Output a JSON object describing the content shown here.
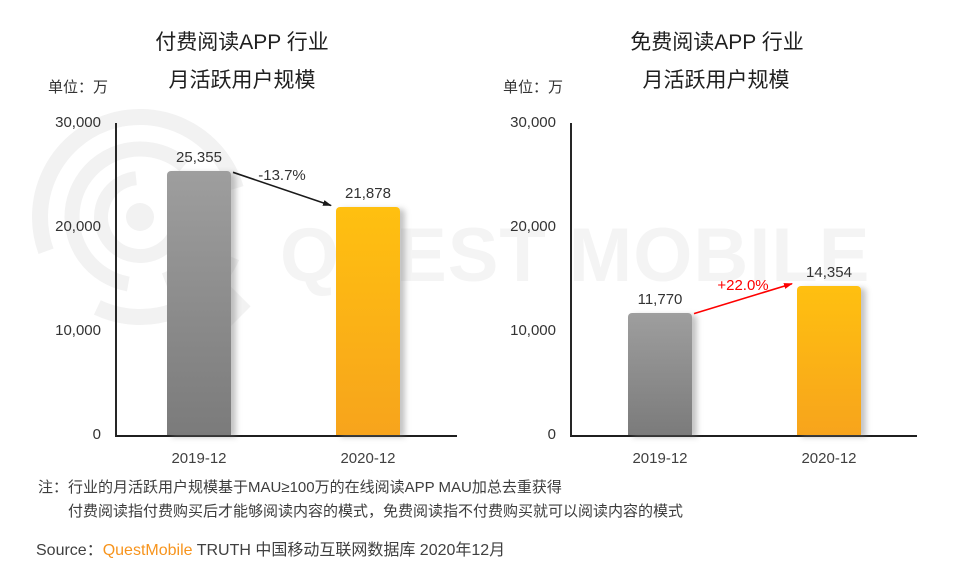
{
  "watermark": {
    "brand_text": "QUEST MOBILE",
    "color": "#f4f4f4"
  },
  "chart_data": [
    {
      "type": "bar",
      "title": "付费阅读APP 行业 月活跃用户规模",
      "title_line1": "付费阅读APP 行业",
      "title_line2": "月活跃用户规模",
      "unit_label": "单位：万",
      "categories": [
        "2019-12",
        "2020-12"
      ],
      "values": [
        25355,
        21878
      ],
      "value_labels": [
        "25,355",
        "21,878"
      ],
      "bar_gradients": [
        [
          "#9e9e9e",
          "#7b7b7b"
        ],
        [
          "#ffc010",
          "#f7a41c"
        ]
      ],
      "change": {
        "label": "-13.7%",
        "color": "#333333",
        "arrow_color": "#1a1a1a"
      },
      "ylim": [
        0,
        30000
      ],
      "yticks": [
        0,
        10000,
        20000,
        30000
      ],
      "ytick_labels": [
        "0",
        "10,000",
        "20,000",
        "30,000"
      ],
      "grid": false,
      "legend": null
    },
    {
      "type": "bar",
      "title": "免费阅读APP 行业 月活跃用户规模",
      "title_line1": "免费阅读APP 行业",
      "title_line2": "月活跃用户规模",
      "unit_label": "单位：万",
      "categories": [
        "2019-12",
        "2020-12"
      ],
      "values": [
        11770,
        14354
      ],
      "value_labels": [
        "11,770",
        "14,354"
      ],
      "bar_gradients": [
        [
          "#9e9e9e",
          "#7b7b7b"
        ],
        [
          "#ffc010",
          "#f7a41c"
        ]
      ],
      "change": {
        "label": "+22.0%",
        "color": "#fe0000",
        "arrow_color": "#fe0000"
      },
      "ylim": [
        0,
        30000
      ],
      "yticks": [
        0,
        10000,
        20000,
        30000
      ],
      "ytick_labels": [
        "0",
        "10,000",
        "20,000",
        "30,000"
      ],
      "grid": false,
      "legend": null
    }
  ],
  "notes": {
    "line1": "注：行业的月活跃用户规模基于MAU≥100万的在线阅读APP MAU加总去重获得",
    "line2": "付费阅读指付费购买后才能够阅读内容的模式，免费阅读指不付费购买就可以阅读内容的模式"
  },
  "source": {
    "prefix": "Source：",
    "brand": "QuestMobile",
    "suffix": " TRUTH 中国移动互联网数据库 2020年12月",
    "brand_color": "#f7941d"
  }
}
